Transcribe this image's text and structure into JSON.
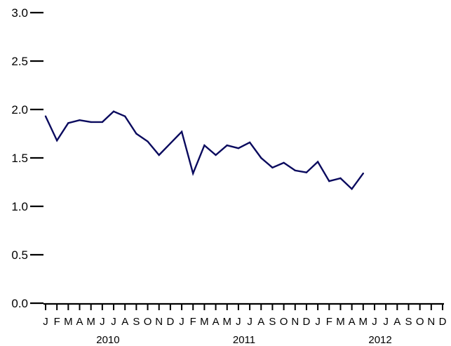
{
  "chart_data": {
    "type": "line",
    "title": "",
    "xlabel": "",
    "ylabel": "",
    "ylim": [
      0.0,
      3.0
    ],
    "y_ticks": [
      "0.0",
      "0.5",
      "1.0",
      "1.5",
      "2.0",
      "2.5",
      "3.0"
    ],
    "months": [
      "J",
      "F",
      "M",
      "A",
      "M",
      "J",
      "J",
      "A",
      "S",
      "O",
      "N",
      "D",
      "J",
      "F",
      "M",
      "A",
      "M",
      "J",
      "J",
      "A",
      "S",
      "O",
      "N",
      "D",
      "J",
      "F",
      "M",
      "A",
      "M",
      "J",
      "J",
      "A",
      "S",
      "O",
      "N",
      "D"
    ],
    "years": [
      "2010",
      "2011",
      "2012"
    ],
    "grid": false,
    "line_color": "#0a0a5e",
    "series": [
      {
        "x": [
          "2010-01",
          "2010-02",
          "2010-03",
          "2010-04",
          "2010-05",
          "2010-06",
          "2010-07",
          "2010-08",
          "2010-09",
          "2010-10",
          "2010-11",
          "2010-12",
          "2011-01",
          "2011-02",
          "2011-03",
          "2011-04",
          "2011-05",
          "2011-06",
          "2011-07",
          "2011-08",
          "2011-09",
          "2011-10",
          "2011-11",
          "2011-12",
          "2012-01",
          "2012-02",
          "2012-03",
          "2012-04",
          "2012-05"
        ],
        "values": [
          1.93,
          1.68,
          1.86,
          1.89,
          1.87,
          1.87,
          1.98,
          1.93,
          1.75,
          1.67,
          1.53,
          1.65,
          1.77,
          1.34,
          1.63,
          1.53,
          1.63,
          1.6,
          1.66,
          1.5,
          1.4,
          1.45,
          1.37,
          1.35,
          1.46,
          1.26,
          1.29,
          1.18,
          1.34
        ]
      }
    ]
  }
}
